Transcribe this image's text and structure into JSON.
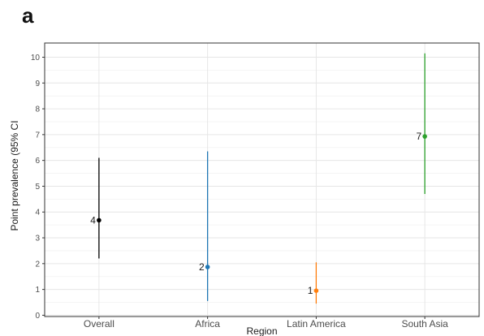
{
  "panel_label": "a",
  "chart_data": {
    "type": "scatter",
    "subtype": "point-range",
    "xlabel": "Region",
    "ylabel": "Point prevalence (95% CI",
    "categories": [
      "Overall",
      "Africa",
      "Latin America",
      "South Asia"
    ],
    "points": [
      {
        "category": "Overall",
        "label": "4",
        "value": 3.68,
        "lower": 2.2,
        "upper": 6.1,
        "color": "#000000"
      },
      {
        "category": "Africa",
        "label": "2",
        "value": 1.87,
        "lower": 0.55,
        "upper": 6.35,
        "color": "#1f77b4"
      },
      {
        "category": "Latin America",
        "label": "1",
        "value": 0.95,
        "lower": 0.45,
        "upper": 2.05,
        "color": "#ff7f0e"
      },
      {
        "category": "South Asia",
        "label": "7",
        "value": 6.93,
        "lower": 4.7,
        "upper": 10.15,
        "color": "#2ca02c"
      }
    ],
    "yticks": [
      0,
      1,
      2,
      3,
      4,
      5,
      6,
      7,
      8,
      9,
      10
    ],
    "ylim": [
      -0.05,
      10.55
    ],
    "grid": true,
    "legend": "none"
  }
}
